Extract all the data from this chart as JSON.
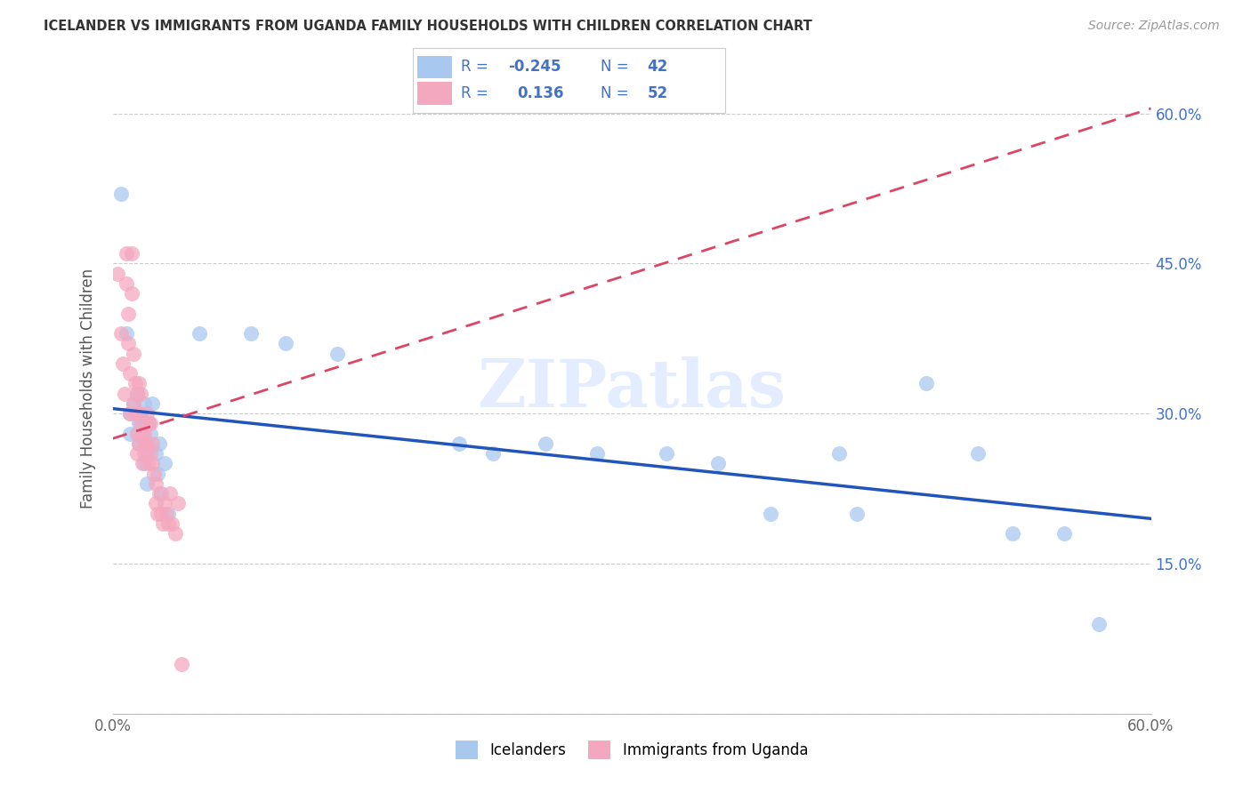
{
  "title": "ICELANDER VS IMMIGRANTS FROM UGANDA FAMILY HOUSEHOLDS WITH CHILDREN CORRELATION CHART",
  "source": "Source: ZipAtlas.com",
  "ylabel": "Family Households with Children",
  "xlim": [
    0.0,
    0.6
  ],
  "ylim": [
    0.0,
    0.65
  ],
  "icelanders_color": "#A8C8F0",
  "uganda_color": "#F4A8C0",
  "trendline_icelanders_color": "#2255BB",
  "trendline_uganda_color": "#DD4466",
  "R_icelanders": -0.245,
  "N_icelanders": 42,
  "R_uganda": 0.136,
  "N_uganda": 52,
  "legend_icelanders": "Icelanders",
  "legend_uganda": "Immigrants from Uganda",
  "watermark": "ZIPatlas",
  "grid_color": "#CCCCCC",
  "legend_text_color": "#4472C4",
  "title_color": "#333333",
  "source_color": "#999999",
  "ice_trendline_start_y": 0.305,
  "ice_trendline_end_y": 0.195,
  "uga_trendline_start_y": 0.275,
  "uga_trendline_end_y": 0.605
}
